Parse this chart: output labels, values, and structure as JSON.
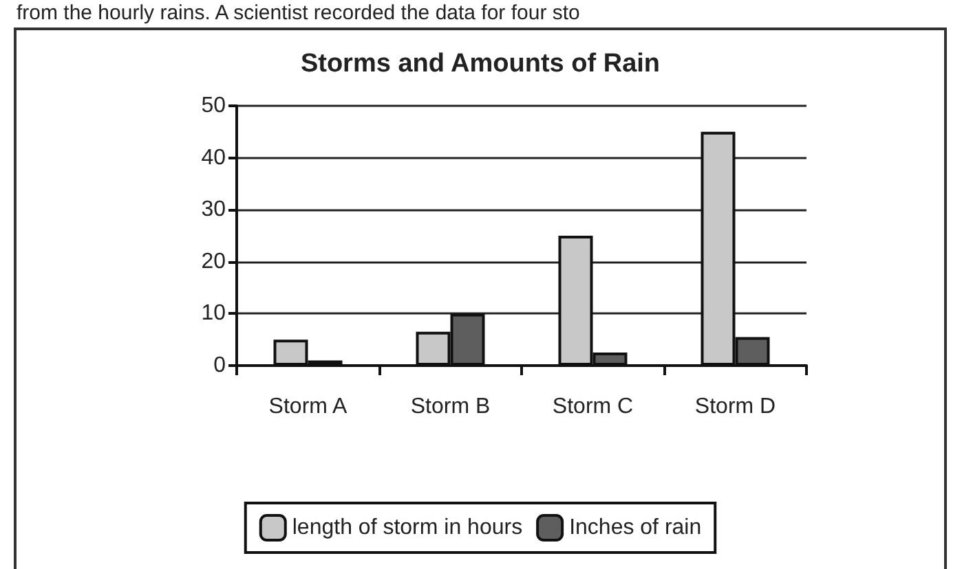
{
  "chart_data": {
    "type": "bar",
    "title": "Storms and Amounts of Rain",
    "annotations": [
      "from the hourly rains. A scientist recorded the data for four sto"
    ],
    "categories": [
      "Storm A",
      "Storm B",
      "Storm C",
      "Storm D"
    ],
    "series": [
      {
        "name": "length of storm in hours",
        "color": "#c8c8c8",
        "values": [
          5,
          6.5,
          25,
          45
        ]
      },
      {
        "name": "Inches of rain",
        "color": "#5e5e5e",
        "values": [
          1,
          10,
          2.5,
          5.5
        ]
      }
    ],
    "ylim": [
      0,
      50
    ],
    "yticks": [
      0,
      10,
      20,
      30,
      40,
      50
    ],
    "grid": "y",
    "legend": "bottom"
  }
}
